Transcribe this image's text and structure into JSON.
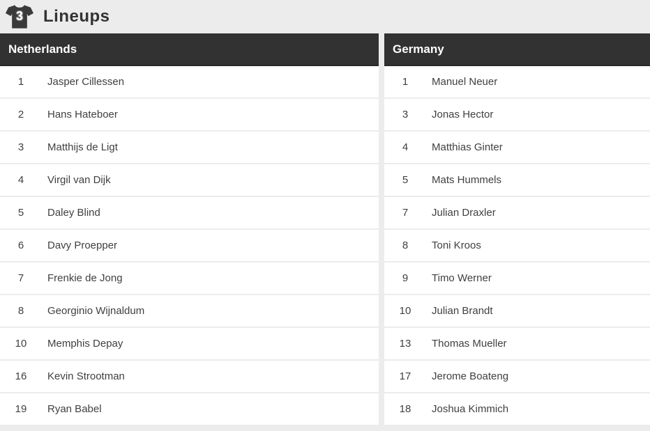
{
  "header": {
    "title": "Lineups",
    "icon_number": "3"
  },
  "teams": [
    {
      "name": "Netherlands",
      "players": [
        {
          "number": "1",
          "name": "Jasper Cillessen"
        },
        {
          "number": "2",
          "name": "Hans Hateboer"
        },
        {
          "number": "3",
          "name": "Matthijs de Ligt"
        },
        {
          "number": "4",
          "name": "Virgil van Dijk"
        },
        {
          "number": "5",
          "name": "Daley Blind"
        },
        {
          "number": "6",
          "name": "Davy Proepper"
        },
        {
          "number": "7",
          "name": "Frenkie de Jong"
        },
        {
          "number": "8",
          "name": "Georginio Wijnaldum"
        },
        {
          "number": "10",
          "name": "Memphis Depay"
        },
        {
          "number": "16",
          "name": "Kevin Strootman"
        },
        {
          "number": "19",
          "name": "Ryan Babel"
        }
      ]
    },
    {
      "name": "Germany",
      "players": [
        {
          "number": "1",
          "name": "Manuel Neuer"
        },
        {
          "number": "3",
          "name": "Jonas Hector"
        },
        {
          "number": "4",
          "name": "Matthias Ginter"
        },
        {
          "number": "5",
          "name": "Mats Hummels"
        },
        {
          "number": "7",
          "name": "Julian Draxler"
        },
        {
          "number": "8",
          "name": "Toni Kroos"
        },
        {
          "number": "9",
          "name": "Timo Werner"
        },
        {
          "number": "10",
          "name": "Julian Brandt"
        },
        {
          "number": "13",
          "name": "Thomas Mueller"
        },
        {
          "number": "17",
          "name": "Jerome Boateng"
        },
        {
          "number": "18",
          "name": "Joshua Kimmich"
        }
      ]
    }
  ],
  "colors": {
    "page_bg": "#ececec",
    "bar_bg": "#323232",
    "bar_text": "#ffffff",
    "row_bg": "#ffffff",
    "row_text": "#404040",
    "title_text": "#333333"
  }
}
